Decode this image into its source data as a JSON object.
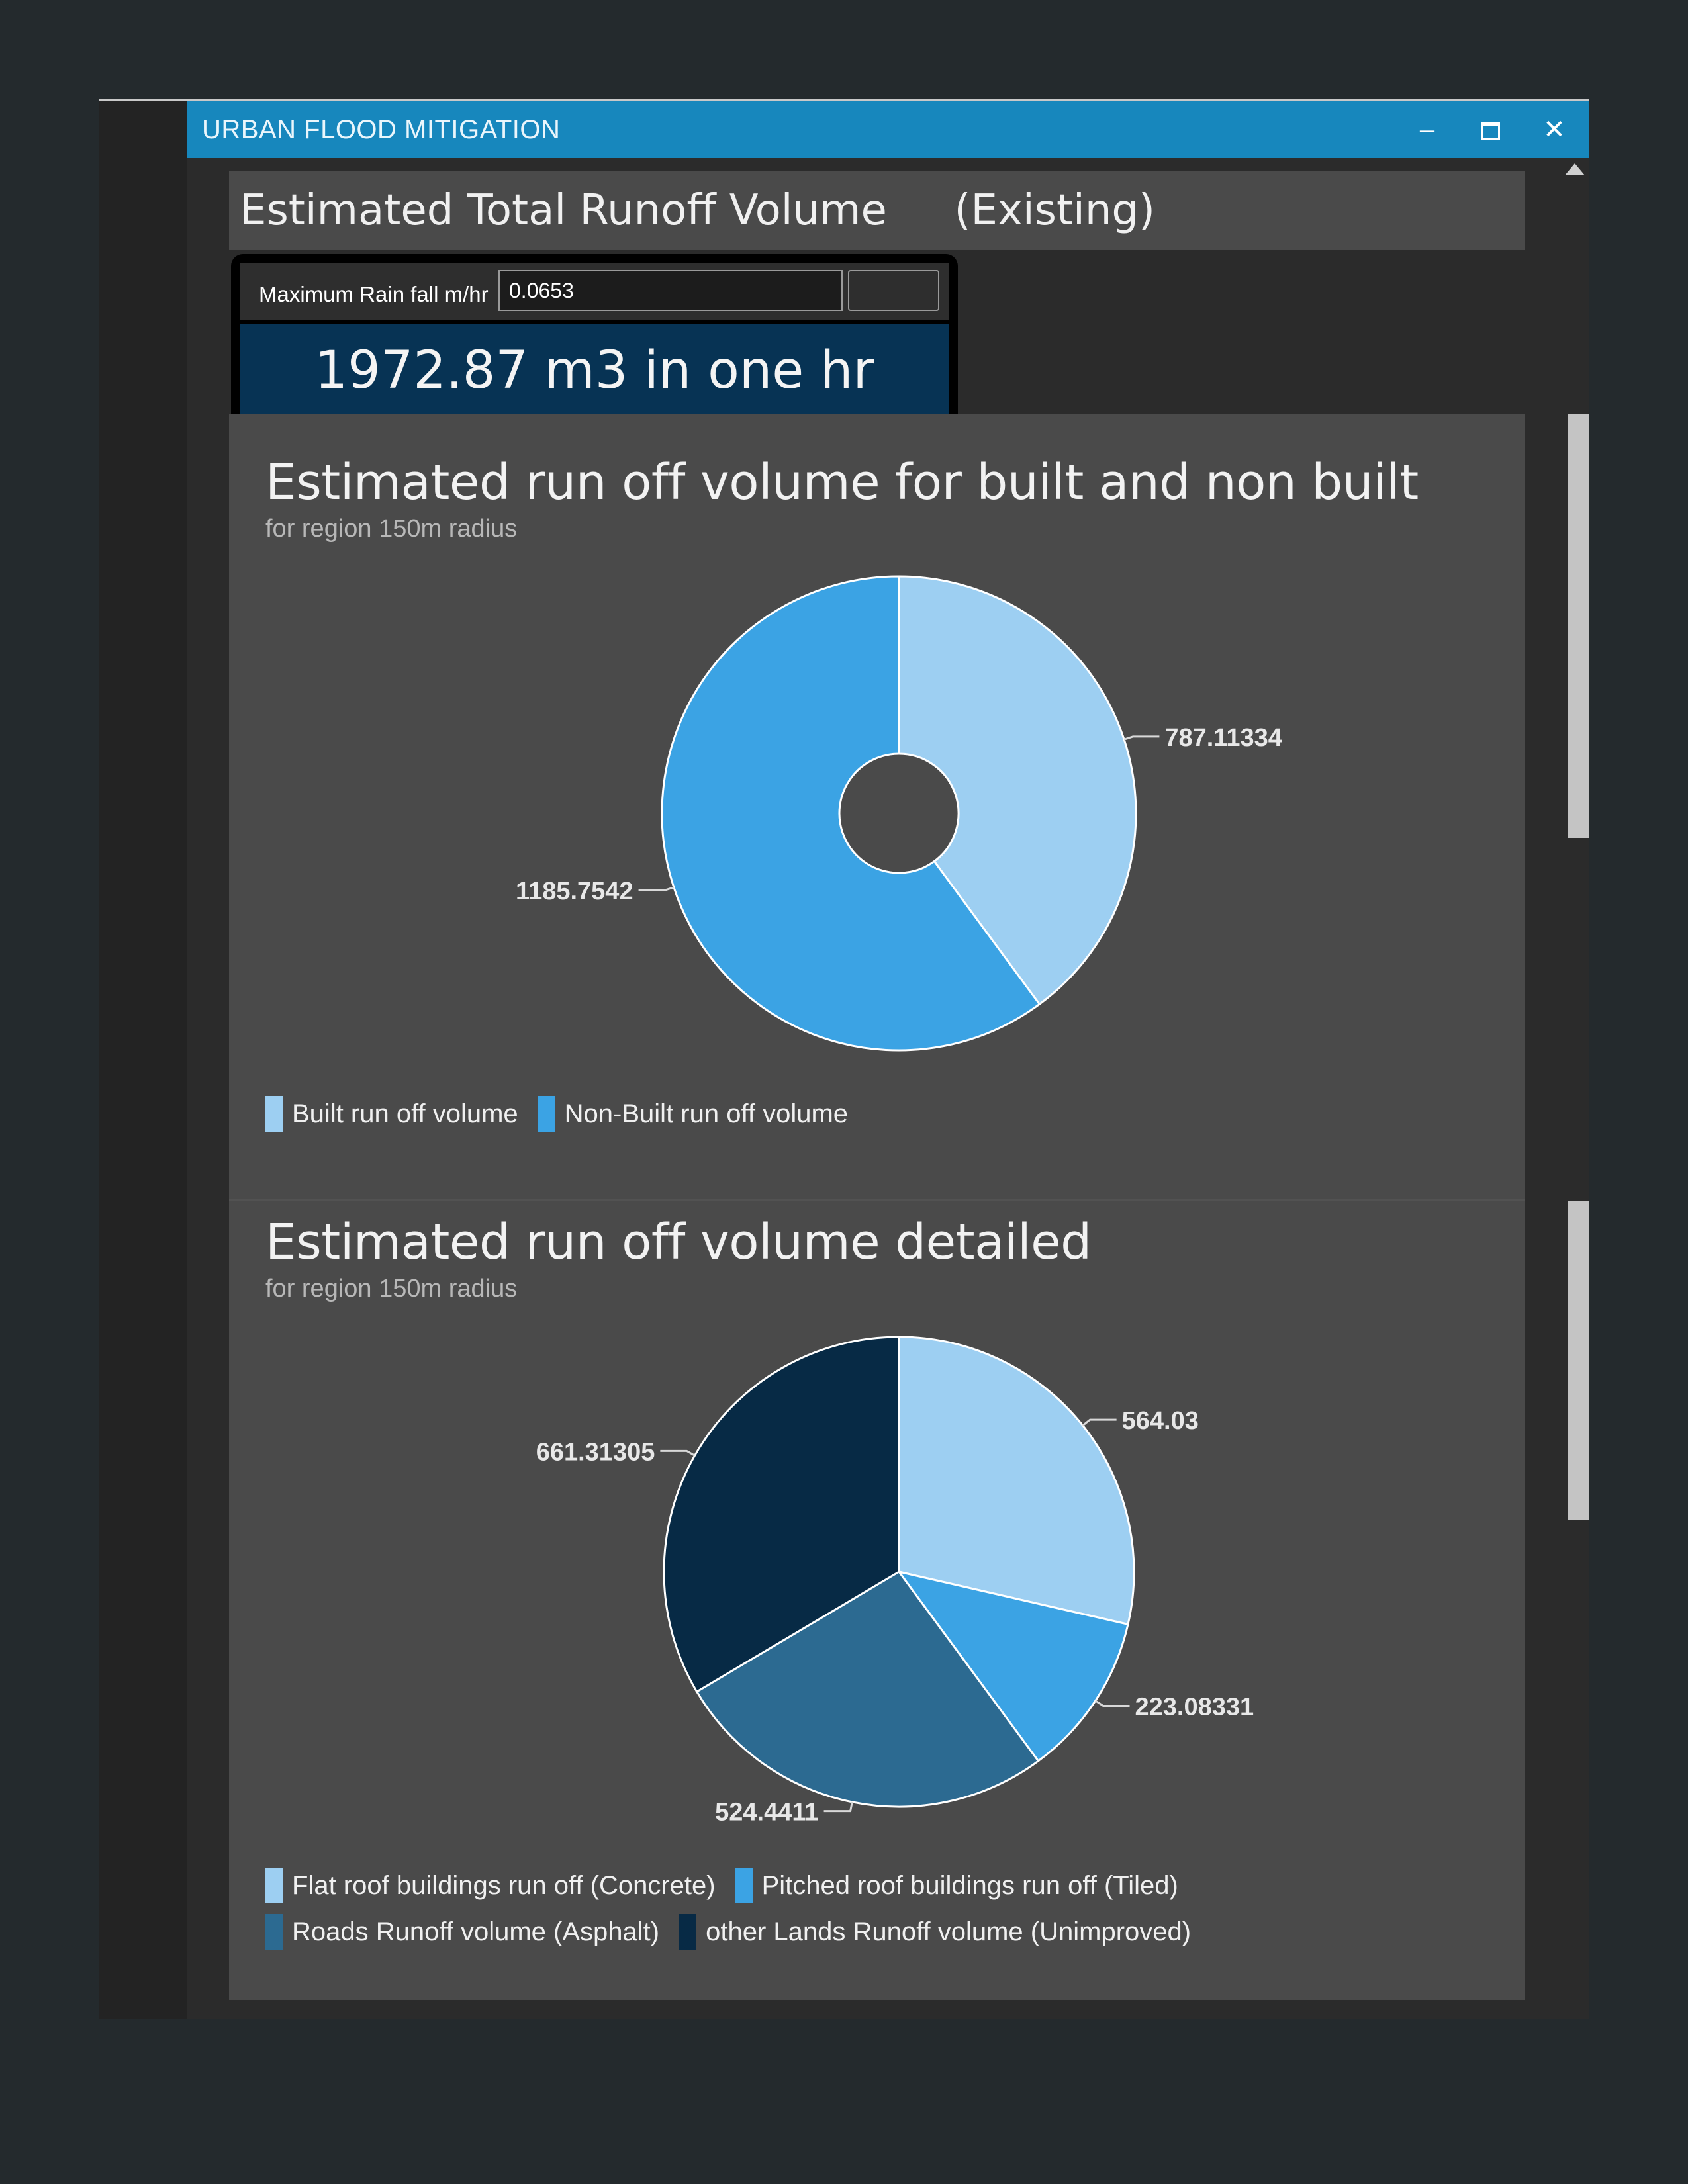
{
  "window": {
    "title": "URBAN FLOOD MITIGATION",
    "minimize_icon": "minimize-icon",
    "maximize_icon": "maximize-icon",
    "close_icon": "close-icon"
  },
  "header": {
    "title": "Estimated Total Runoff Volume     (Existing)"
  },
  "calculator": {
    "rain_label": "Maximum Rain fall m/hr",
    "rain_value": "0.0653",
    "result": "1972.87 m3 in one hr"
  },
  "colors": {
    "flat_roof": "#9dcff2",
    "pitched_roof": "#3ba3e4",
    "roads": "#2c6a91",
    "other_lands": "#072a45",
    "built": "#9dcff2",
    "non_built": "#3ba3e4"
  },
  "chart_data": [
    {
      "type": "pie",
      "title": "Estimated run off volume for built and non built",
      "subtitle": "for region 150m radius",
      "donut": true,
      "slices": [
        {
          "label": "Built run off volume",
          "value": 787.11334,
          "display": "787.11334",
          "color": "#9dcff2"
        },
        {
          "label": "Non-Built run off volume",
          "value": 1185.7542,
          "display": "1185.7542",
          "color": "#3ba3e4"
        }
      ],
      "legend_position": "bottom-left"
    },
    {
      "type": "pie",
      "title": "Estimated run off volume detailed",
      "subtitle": "for region 150m radius",
      "donut": false,
      "slices": [
        {
          "label": "Flat roof buildings run off (Concrete)",
          "value": 564.03,
          "display": "564.03",
          "color": "#9dcff2"
        },
        {
          "label": "Pitched roof buildings run off (Tiled)",
          "value": 223.08331,
          "display": "223.08331",
          "color": "#3ba3e4"
        },
        {
          "label": "Roads Runoff volume (Asphalt)",
          "value": 524.4411,
          "display": "524.4411",
          "color": "#2c6a91"
        },
        {
          "label": "other Lands Runoff volume (Unimproved)",
          "value": 661.31305,
          "display": "661.31305",
          "color": "#072a45"
        }
      ],
      "legend_position": "bottom-left"
    }
  ]
}
